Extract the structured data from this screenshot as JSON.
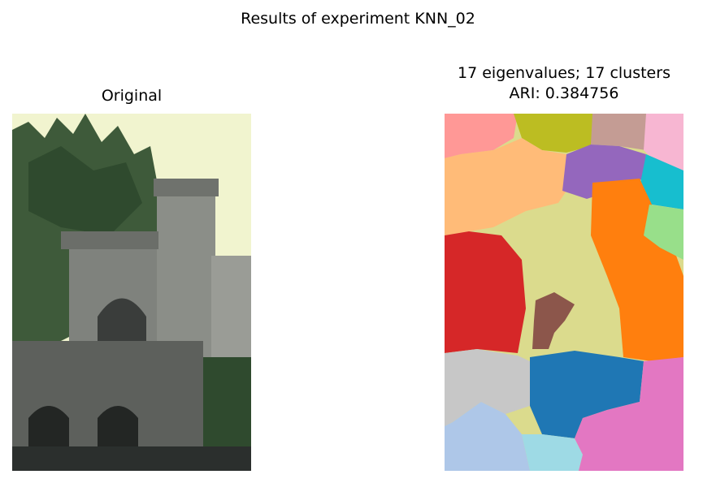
{
  "figure": {
    "suptitle": "Results of experiment KNN_02"
  },
  "left_panel": {
    "title": "Original"
  },
  "right_panel": {
    "title_line1": "17 eigenvalues; 17 clusters",
    "title_line2": "ARI: 0.384756"
  },
  "colors": {
    "sky": "#f3f5cf",
    "tree": "#3f5a3a",
    "stone": "#8a8d88",
    "stone_dark": "#4b4f4e",
    "water": "#2c302e",
    "seg_pink_light": "#ff9896",
    "seg_olive": "#bcbd22",
    "seg_rose": "#c49c94",
    "seg_pink": "#f7b6d2",
    "seg_purple": "#9467bd",
    "seg_cyan": "#17becf",
    "seg_peach": "#ffbb78",
    "seg_orange": "#ff7f0e",
    "seg_lightgreen": "#98df8a",
    "seg_red": "#d62728",
    "seg_khaki": "#dbdb8d",
    "seg_brown": "#8c564b",
    "seg_gray": "#c7c7c7",
    "seg_blue": "#1f77b4",
    "seg_lightblue": "#aec7e8",
    "seg_skyblue": "#9edae5",
    "seg_magenta": "#e377c2"
  }
}
